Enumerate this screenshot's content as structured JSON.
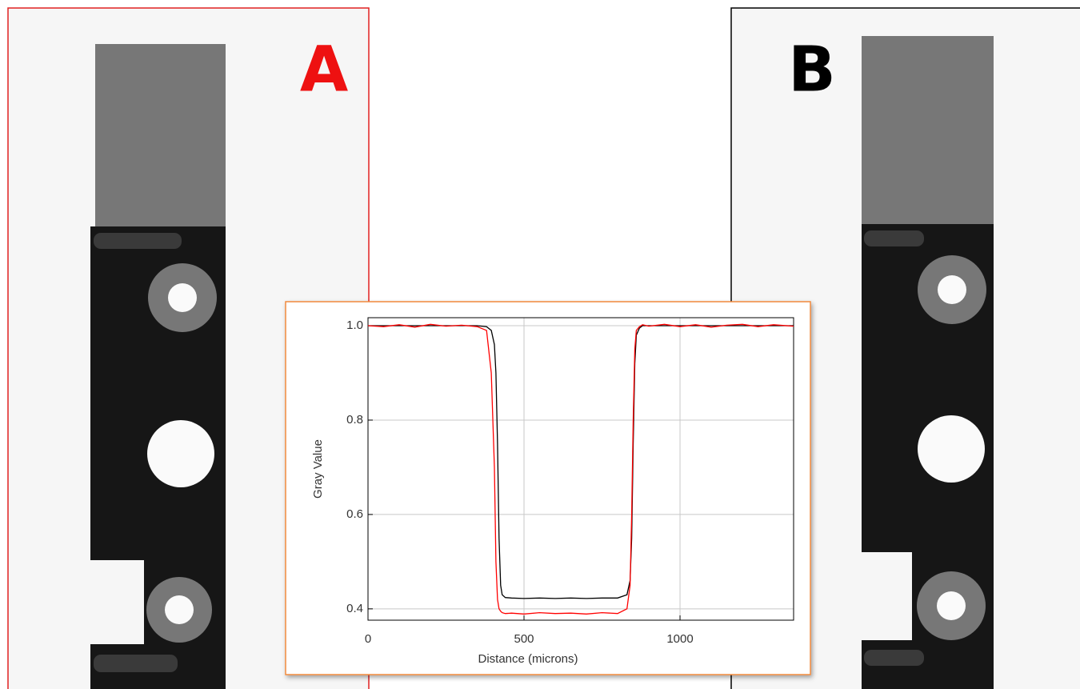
{
  "panels": [
    {
      "label": "A"
    },
    {
      "label": "B"
    }
  ],
  "chart_data": {
    "type": "line",
    "xlabel": "Distance (microns)",
    "ylabel": "Gray Value",
    "x": [
      0,
      50,
      100,
      150,
      200,
      250,
      300,
      350,
      380,
      395,
      405,
      410,
      415,
      420,
      425,
      430,
      440,
      460,
      500,
      550,
      600,
      650,
      700,
      750,
      800,
      830,
      840,
      845,
      850,
      855,
      860,
      870,
      880,
      900,
      950,
      1000,
      1050,
      1100,
      1150,
      1200,
      1250,
      1300,
      1364
    ],
    "series": [
      {
        "color": "#000000",
        "values": [
          1,
          1,
          1,
          1,
          1,
          1,
          1,
          1,
          0.998,
          0.99,
          0.96,
          0.9,
          0.75,
          0.55,
          0.45,
          0.43,
          0.424,
          0.423,
          0.422,
          0.423,
          0.422,
          0.423,
          0.422,
          0.423,
          0.423,
          0.43,
          0.46,
          0.55,
          0.75,
          0.92,
          0.98,
          0.995,
          1,
          1,
          1,
          1,
          1,
          1,
          1,
          1,
          1,
          1,
          1
        ]
      },
      {
        "color": "#ff0000",
        "values": [
          1,
          0.998,
          1.002,
          0.997,
          1.003,
          0.999,
          1.001,
          0.998,
          0.99,
          0.9,
          0.7,
          0.5,
          0.42,
          0.4,
          0.395,
          0.392,
          0.39,
          0.391,
          0.389,
          0.392,
          0.39,
          0.391,
          0.389,
          0.392,
          0.39,
          0.4,
          0.45,
          0.6,
          0.8,
          0.95,
          0.99,
          0.998,
          1.002,
          0.999,
          1.003,
          0.998,
          1.002,
          0.997,
          1.001,
          1.003,
          0.998,
          1.002,
          0.999
        ]
      }
    ],
    "xlim": [
      0,
      1364
    ],
    "ylim": [
      0.376,
      1.017
    ],
    "xticks": [
      0,
      500,
      1000
    ],
    "yticks": [
      0.4,
      0.6,
      0.8,
      {
        "value": 1,
        "label": "1.0"
      }
    ],
    "grid": true
  }
}
